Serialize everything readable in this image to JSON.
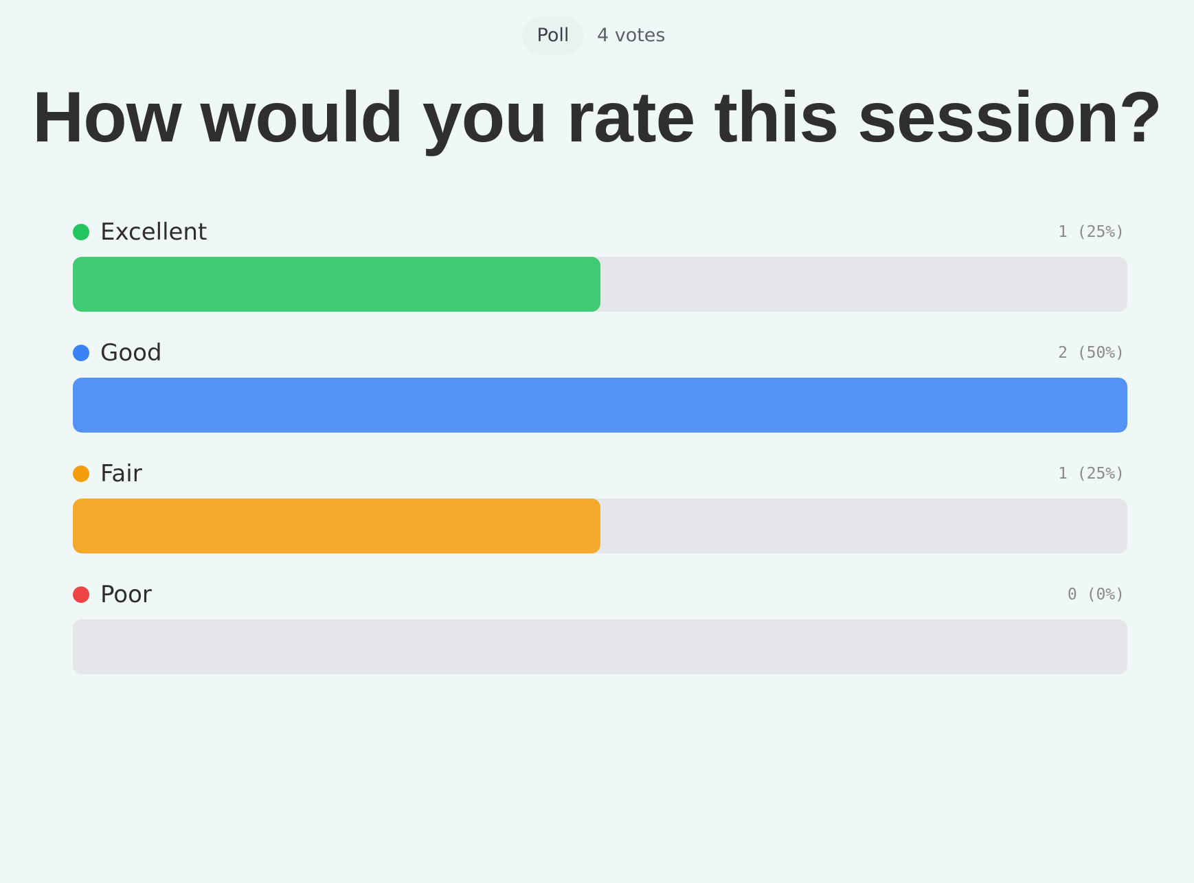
{
  "header": {
    "badge": "Poll",
    "votes": "4 votes"
  },
  "title": "How would you rate this session?",
  "options": [
    {
      "label": "Excellent",
      "result": "1 (25%)",
      "votes": 1,
      "color": "#22c55e"
    },
    {
      "label": "Good",
      "result": "2 (50%)",
      "votes": 2,
      "color": "#3b82f6"
    },
    {
      "label": "Fair",
      "result": "1 (25%)",
      "votes": 1,
      "color": "#f59e0b"
    },
    {
      "label": "Poor",
      "result": "0 (0%)",
      "votes": 0,
      "color": "#ef4444"
    }
  ]
}
